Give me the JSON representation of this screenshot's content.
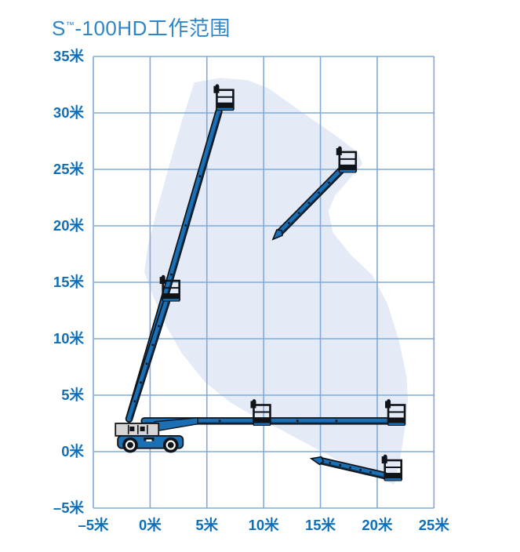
{
  "header": {
    "title_prefix": "S",
    "title_tm": "™",
    "title_suffix": "-100HD工作范围",
    "title_color": "#2E86C8"
  },
  "chart_data": {
    "type": "area",
    "title": "S™-100HD工作范围",
    "subtitle": "",
    "xlabel": "",
    "ylabel": "",
    "unit": "米",
    "xlim": [
      -5,
      25
    ],
    "ylim": [
      -5,
      35
    ],
    "grid": true,
    "legend": "none",
    "x_ticks": [
      {
        "v": -5,
        "label": "–5米"
      },
      {
        "v": 0,
        "label": "0米"
      },
      {
        "v": 5,
        "label": "5米"
      },
      {
        "v": 10,
        "label": "10米"
      },
      {
        "v": 15,
        "label": "15米"
      },
      {
        "v": 20,
        "label": "20米"
      },
      {
        "v": 25,
        "label": "25米"
      }
    ],
    "y_ticks": [
      {
        "v": 35,
        "label": "35米"
      },
      {
        "v": 30,
        "label": "30米"
      },
      {
        "v": 25,
        "label": "25米"
      },
      {
        "v": 20,
        "label": "20米"
      },
      {
        "v": 15,
        "label": "15米"
      },
      {
        "v": 10,
        "label": "10米"
      },
      {
        "v": 5,
        "label": "5米"
      },
      {
        "v": 0,
        "label": "0米"
      },
      {
        "v": -5,
        "label": "–5米"
      }
    ],
    "colors": {
      "grid": "#82A9DA",
      "tick_label": "#0E6FB8",
      "envelope_fill": "#E4EAF6",
      "machine_blue": "#1A6FB5",
      "machine_dark": "#101418",
      "machine_gray": "#D6D6D6",
      "background": "#FFFFFF"
    },
    "envelope_outline_m": [
      [
        3.9,
        32.7
      ],
      [
        6.2,
        33.1
      ],
      [
        8.6,
        32.9
      ],
      [
        10.4,
        32.2
      ],
      [
        13.6,
        29.9
      ],
      [
        16.2,
        28.1
      ],
      [
        18.3,
        26.5
      ],
      [
        18.7,
        25.5
      ],
      [
        17.7,
        24.3
      ],
      [
        16.3,
        22.7
      ],
      [
        15.7,
        21.3
      ],
      [
        16.1,
        19.4
      ],
      [
        17.7,
        17.4
      ],
      [
        19.6,
        15.6
      ],
      [
        20.9,
        13.1
      ],
      [
        21.9,
        9.9
      ],
      [
        22.6,
        6.6
      ],
      [
        22.7,
        4.6
      ],
      [
        22.4,
        1.8
      ],
      [
        22.0,
        -0.8
      ],
      [
        21.5,
        -2.9
      ],
      [
        19.2,
        -2.0
      ],
      [
        16.6,
        -0.8
      ],
      [
        14.0,
        0.6
      ],
      [
        11.6,
        1.9
      ],
      [
        9.2,
        3.1
      ],
      [
        7.0,
        4.4
      ],
      [
        4.8,
        6.2
      ],
      [
        2.8,
        8.7
      ],
      [
        1.2,
        11.5
      ],
      [
        0.1,
        14.2
      ],
      [
        -0.5,
        15.9
      ],
      [
        -0.2,
        18.2
      ],
      [
        0.6,
        21.4
      ],
      [
        1.7,
        25.4
      ],
      [
        2.8,
        29.3
      ],
      [
        3.9,
        32.7
      ]
    ],
    "machine": {
      "pivot_m": [
        -1.9,
        2.8
      ],
      "chassis": {
        "body_m": [
          -2.85,
          0.3,
          5.75,
          1.1
        ],
        "counterweight_m": [
          -0.55,
          0.95,
          0.9,
          0.3
        ],
        "turntable_m": [
          -3.05,
          1.4,
          3.8,
          1.1
        ],
        "boom_base_taper_m": [
          [
            0.4,
            1.8
          ],
          [
            4.2,
            2.45
          ],
          [
            4.2,
            3.0
          ],
          [
            0.4,
            2.65
          ]
        ],
        "wheels_m": [
          [
            -1.75,
            0.58,
            0.68
          ],
          [
            1.82,
            0.58,
            0.68
          ]
        ]
      },
      "booms": [
        {
          "id": "boom-75deg-extended",
          "from": [
            -1.85,
            2.9
          ],
          "to": [
            6.05,
            30.1
          ],
          "platform": [
            6.6,
            31.2
          ],
          "tip": false
        },
        {
          "id": "boom-75deg-retracted",
          "from": [
            -1.85,
            2.9
          ],
          "to": [
            1.45,
            13.3
          ],
          "platform": [
            1.85,
            14.3
          ],
          "tip": false
        },
        {
          "id": "boom-50deg-extended-section",
          "from": [
            11.4,
            19.4
          ],
          "to": [
            16.9,
            25.0
          ],
          "platform": [
            17.4,
            25.7
          ],
          "tip": true
        },
        {
          "id": "boom-horizontal-extended",
          "from": [
            -0.5,
            2.72
          ],
          "to": [
            20.9,
            2.72
          ],
          "platform": [
            21.7,
            3.3
          ],
          "tip": false
        },
        {
          "id": "platform-horizontal-retracted",
          "platform": [
            9.85,
            3.3
          ]
        },
        {
          "id": "boom-below-horizontal-section",
          "from": [
            15.0,
            -0.8
          ],
          "to": [
            20.6,
            -2.1
          ],
          "platform": [
            21.4,
            -1.6
          ],
          "tip": true
        }
      ]
    }
  }
}
